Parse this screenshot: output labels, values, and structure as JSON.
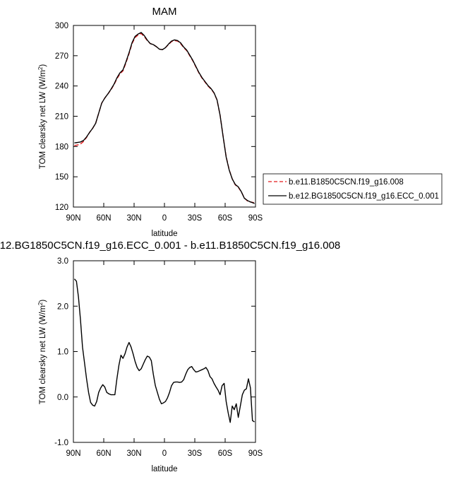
{
  "chart_data": [
    {
      "type": "line",
      "title": "MAM",
      "xlabel": "latitude",
      "ylabel": "TOM clearsky net LW (W/m²)",
      "ylabel_base": "TOM clearsky net LW (W/m",
      "ylabel_sup": "2",
      "ylabel_end": ")",
      "xlim": [
        90,
        -90
      ],
      "ylim": [
        120,
        300
      ],
      "xticks": [
        90,
        60,
        30,
        0,
        -30,
        -60,
        -90
      ],
      "xtick_labels": [
        "90N",
        "60N",
        "30N",
        "0",
        "30S",
        "60S",
        "90S"
      ],
      "yticks": [
        120,
        150,
        180,
        210,
        240,
        270,
        300
      ],
      "ytick_labels": [
        "120",
        "150",
        "180",
        "210",
        "240",
        "270",
        "300"
      ],
      "legend_position": "right",
      "series": [
        {
          "name": "b.e11.B1850C5CN.f19_g16.008",
          "color": "#e31a1c",
          "dash": "dashed",
          "x": [
            89,
            86,
            83,
            80,
            77,
            74,
            71,
            68,
            65,
            62,
            59,
            56,
            53,
            50,
            47,
            44,
            41,
            38,
            35,
            32,
            29,
            26,
            23,
            20,
            17,
            14,
            11,
            8,
            5,
            2,
            -1,
            -4,
            -7,
            -10,
            -13,
            -16,
            -19,
            -22,
            -25,
            -28,
            -31,
            -34,
            -37,
            -40,
            -43,
            -46,
            -49,
            -52,
            -55,
            -58,
            -61,
            -64,
            -67,
            -70,
            -73,
            -76,
            -79,
            -82,
            -85,
            -88,
            -89
          ],
          "y": [
            181,
            181.5,
            182.5,
            185,
            189,
            194,
            198,
            203,
            213,
            223,
            228,
            232,
            236,
            241,
            247,
            252,
            255,
            263,
            272,
            282,
            288,
            290.5,
            292,
            289,
            285,
            282,
            281,
            279,
            276.5,
            276,
            278,
            281,
            284,
            285,
            284.5,
            282,
            278,
            275,
            270,
            265,
            259,
            253,
            248,
            244,
            240,
            237,
            233,
            226,
            211,
            190,
            170,
            157,
            148,
            142,
            139.5,
            135,
            129,
            126,
            125,
            124.5,
            124
          ]
        },
        {
          "name": "b.e12.BG1850C5CN.f19_g16.ECC_0.001",
          "color": "#000000",
          "dash": "solid",
          "x": [
            89,
            86,
            83,
            80,
            77,
            74,
            71,
            68,
            65,
            62,
            59,
            56,
            53,
            50,
            47,
            44,
            41,
            38,
            35,
            32,
            29,
            26,
            23,
            20,
            17,
            14,
            11,
            8,
            5,
            2,
            -1,
            -4,
            -7,
            -10,
            -13,
            -16,
            -19,
            -22,
            -25,
            -28,
            -31,
            -34,
            -37,
            -40,
            -43,
            -46,
            -49,
            -52,
            -55,
            -58,
            -61,
            -64,
            -67,
            -70,
            -73,
            -76,
            -79,
            -82,
            -85,
            -88,
            -89
          ],
          "y": [
            183.6,
            184,
            184.5,
            186,
            189.5,
            194,
            198,
            203,
            213,
            223,
            228,
            232,
            236.5,
            241.5,
            248,
            253,
            256,
            264,
            273,
            283,
            289.2,
            291.5,
            293,
            290,
            285.5,
            282,
            281,
            279,
            276.5,
            276,
            278,
            281.5,
            284.5,
            285.7,
            285,
            282.7,
            278.6,
            275.6,
            270.6,
            265.5,
            259.5,
            253.5,
            248.5,
            244.5,
            240.5,
            237.5,
            233.3,
            226.2,
            211,
            189.8,
            169.5,
            156.7,
            147.9,
            142.4,
            140,
            135.2,
            128.7,
            126.5,
            125.1,
            124,
            123.5
          ]
        }
      ]
    },
    {
      "type": "line",
      "title": "12.BG1850C5CN.f19_g16.ECC_0.001 - b.e11.B1850C5CN.f19_g16.008",
      "xlabel": "latitude",
      "ylabel": "TOM clearsky net LW (W/m²)",
      "ylabel_base": "TOM clearsky net LW (W/m",
      "ylabel_sup": "2",
      "ylabel_end": ")",
      "xlim": [
        90,
        -90
      ],
      "ylim": [
        -1,
        3
      ],
      "xticks": [
        90,
        60,
        30,
        0,
        -30,
        -60,
        -90
      ],
      "xtick_labels": [
        "90N",
        "60N",
        "30N",
        "0",
        "30S",
        "60S",
        "90S"
      ],
      "yticks": [
        -1,
        0,
        1,
        2,
        3
      ],
      "ytick_labels": [
        "-1.0",
        "0.0",
        "1.0",
        "2.0",
        "3.0"
      ],
      "series": [
        {
          "color": "#000000",
          "dash": "solid",
          "x": [
            89,
            87,
            85,
            83,
            81,
            79,
            77,
            75,
            73,
            71,
            69,
            67,
            65,
            63,
            61,
            59,
            57,
            55,
            53,
            51,
            49,
            47,
            45,
            43,
            41,
            39,
            37,
            35,
            33,
            31,
            29,
            27,
            25,
            23,
            21,
            19,
            17,
            15,
            13,
            11,
            9,
            7,
            5,
            3,
            1,
            -1,
            -3,
            -5,
            -7,
            -9,
            -11,
            -13,
            -15,
            -17,
            -19,
            -21,
            -23,
            -25,
            -27,
            -29,
            -31,
            -33,
            -35,
            -37,
            -39,
            -41,
            -43,
            -45,
            -47,
            -49,
            -51,
            -53,
            -55,
            -57,
            -59,
            -61,
            -63,
            -65,
            -67,
            -69,
            -71,
            -73,
            -75,
            -77,
            -79,
            -81,
            -83,
            -85,
            -87,
            -89
          ],
          "y": [
            2.6,
            2.55,
            2.2,
            1.7,
            1.1,
            0.75,
            0.4,
            0.1,
            -0.12,
            -0.18,
            -0.2,
            -0.1,
            0.1,
            0.2,
            0.27,
            0.22,
            0.1,
            0.07,
            0.05,
            0.05,
            0.05,
            0.4,
            0.7,
            0.92,
            0.85,
            0.95,
            1.1,
            1.2,
            1.1,
            0.95,
            0.78,
            0.65,
            0.58,
            0.62,
            0.72,
            0.82,
            0.9,
            0.88,
            0.8,
            0.5,
            0.25,
            0.1,
            -0.05,
            -0.15,
            -0.13,
            -0.1,
            -0.02,
            0.1,
            0.25,
            0.32,
            0.33,
            0.33,
            0.32,
            0.33,
            0.38,
            0.5,
            0.6,
            0.65,
            0.67,
            0.6,
            0.55,
            0.56,
            0.58,
            0.6,
            0.62,
            0.65,
            0.58,
            0.45,
            0.4,
            0.3,
            0.22,
            0.15,
            0.05,
            0.25,
            0.3,
            -0.1,
            -0.35,
            -0.56,
            -0.2,
            -0.28,
            -0.15,
            -0.45,
            -0.2,
            0.05,
            0.15,
            0.18,
            0.4,
            0.2,
            -0.52,
            -0.55
          ]
        }
      ]
    }
  ]
}
